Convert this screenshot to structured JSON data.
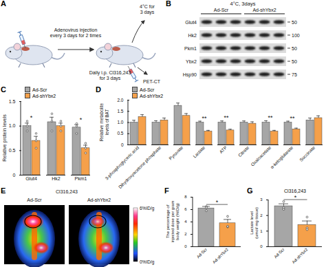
{
  "schematic": {
    "panel": "A",
    "texts": [
      [
        "Adenovirus injection",
        "every 3 days for 2 times"
      ],
      [
        "4°C for",
        "3 days"
      ],
      [
        "Daily i.p. Cl316,243",
        "for 3 days"
      ],
      [
        "PET-CT"
      ]
    ]
  },
  "blot": {
    "panel": "B",
    "title": "4°C, 3days",
    "groups": [
      "Ad-Scr",
      "Ad-shYbx2"
    ],
    "rows": [
      {
        "label": "Glut4",
        "mw": 50
      },
      {
        "label": "Hk2",
        "mw": 100
      },
      {
        "label": "Pkm1",
        "mw": 50
      },
      {
        "label": "Ybx2",
        "mw": 50
      },
      {
        "label": "Hsp90",
        "mw": 75
      }
    ]
  },
  "image": {
    "panel": "E",
    "title": "Cl316,243",
    "labels": [
      "Ad-Scr",
      "Ad-shYbx2"
    ],
    "colorbar": {
      "range": [
        0,
        6
      ],
      "ticks": [
        {
          "value": 6,
          "label": "6%ID/g"
        },
        {
          "value": 0,
          "label": "0%ID/g"
        }
      ]
    }
  },
  "chart_data": [
    {
      "panel": "C",
      "type": "bar",
      "y_label": "Relative protein levels",
      "categories": [
        "Glut4",
        "Hk2",
        "Pkm1"
      ],
      "series": [
        {
          "name": "Ad-Scr",
          "color": "#a6a6a6",
          "values": [
            1.0,
            1.08,
            0.97
          ],
          "errors": [
            0.06,
            0.1,
            0.06
          ],
          "points": [
            [
              1.1,
              0.9,
              1.0
            ],
            [
              1.25,
              0.9,
              1.1
            ],
            [
              1.05,
              0.85,
              1.0
            ]
          ]
        },
        {
          "name": "Ad-shYbx2",
          "color": "#f5a04a",
          "values": [
            0.7,
            1.0,
            0.55
          ],
          "errors": [
            0.09,
            0.06,
            0.06
          ],
          "points": [
            [
              0.55,
              0.85,
              0.7
            ],
            [
              0.9,
              1.1,
              1.0
            ],
            [
              0.45,
              0.65,
              0.55
            ]
          ]
        }
      ],
      "significance": [
        "*",
        null,
        "*"
      ],
      "ylim": [
        0,
        1.5
      ],
      "yticks": [
        0,
        0.5,
        {
          "value": 1,
          "label": "1.0"
        },
        1.5
      ],
      "legend": "top-left"
    },
    {
      "panel": "D",
      "type": "bar",
      "y_label": "Relative metabolite levels of BAT",
      "categories": [
        "3-phosphoglyceric acid",
        "Dihydroxyacetone phosphate",
        "Pyruvate",
        "Lactate",
        "ATP",
        "Citrate",
        "Oxaloacetate",
        "α-ketoglutarate",
        "Succinate"
      ],
      "series": [
        {
          "name": "Ad-Scr",
          "color": "#a6a6a6",
          "values": [
            1.0,
            1.0,
            1.75,
            1.0,
            1.0,
            1.0,
            1.0,
            1.0,
            1.1
          ],
          "errors": [
            0.1,
            0.08,
            0.12,
            0.06,
            0.07,
            0.07,
            0.08,
            0.06,
            0.1
          ]
        },
        {
          "name": "Ad-shYbx2",
          "color": "#f5a04a",
          "values": [
            1.25,
            1.1,
            1.3,
            0.6,
            0.65,
            0.95,
            0.6,
            0.7,
            1.2
          ],
          "errors": [
            0.1,
            0.1,
            0.1,
            0.05,
            0.05,
            0.08,
            0.05,
            0.05,
            0.1
          ]
        }
      ],
      "significance": [
        null,
        null,
        null,
        "**",
        "**",
        null,
        "**",
        "**",
        null
      ],
      "ylim": [
        0,
        2
      ],
      "yticks": [
        0,
        0.5,
        {
          "value": 1,
          "label": "1.0"
        },
        1.5,
        {
          "value": 2,
          "label": "2.0"
        }
      ],
      "legend": "top-left"
    },
    {
      "panel": "F",
      "type": "bar",
      "y_label": "The percentage of injected dose per gram body weight (%ID/g)",
      "categories": [
        "Ad-Scr",
        "Ad-shYbx2"
      ],
      "values": [
        6.2,
        3.8
      ],
      "errors": [
        0.3,
        0.6
      ],
      "points": [
        [
          6.5,
          5.8,
          6.3
        ],
        [
          3.2,
          4.9,
          3.3
        ]
      ],
      "colors": [
        "#a6a6a6",
        "#f5a04a"
      ],
      "significance": "*",
      "ylim": [
        0,
        8
      ],
      "yticks": [
        0,
        2,
        4,
        6,
        8
      ]
    },
    {
      "panel": "G",
      "type": "bar",
      "title": "Cl316,243",
      "y_label": "Lactate level (umol/ mg tissue)",
      "categories": [
        "Ad-Scr",
        "Ad-shYbx2"
      ],
      "values": [
        2.6,
        1.4
      ],
      "errors": [
        0.15,
        0.25
      ],
      "points": [
        [
          2.9,
          2.5,
          2.4
        ],
        [
          1.9,
          1.2,
          1.1
        ]
      ],
      "colors": [
        "#a6a6a6",
        "#f5a04a"
      ],
      "significance": "*",
      "ylim": [
        0,
        3
      ],
      "yticks": [
        0,
        1,
        2,
        3
      ]
    }
  ]
}
